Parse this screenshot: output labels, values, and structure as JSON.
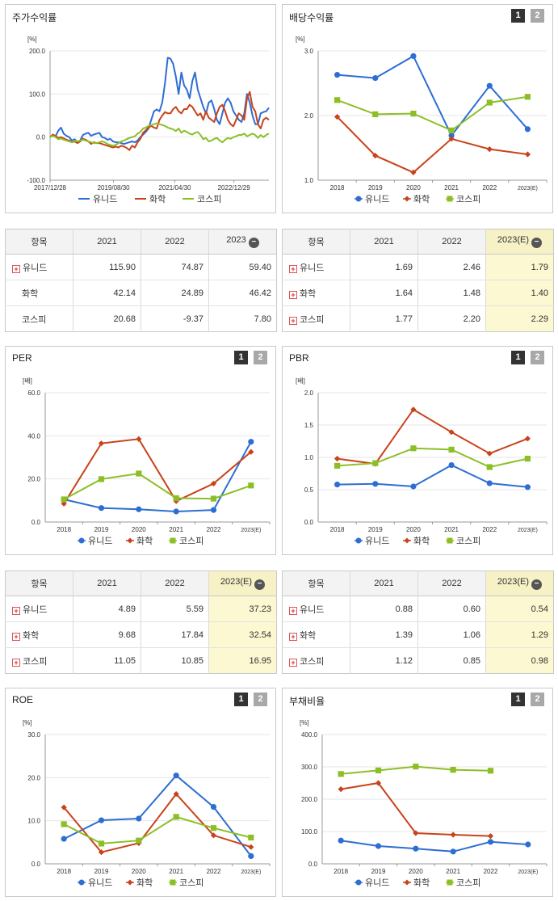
{
  "colors": {
    "series": [
      "#2d6ed3",
      "#c8431b",
      "#8cbf26"
    ]
  },
  "legend": [
    "유니드",
    "화학",
    "코스피"
  ],
  "charts": [
    {
      "id": "stock",
      "title": "주가수익률",
      "unit": "[%]",
      "has_buttons": false,
      "chart_data": {
        "type": "line",
        "title": "주가수익률",
        "ylabel": "[%]",
        "ylim": [
          -100,
          200
        ],
        "yticks": [
          "200.0",
          "100.0",
          "0.0",
          "-100.0"
        ],
        "xticks": [
          "2017/12/28",
          "2019/08/30",
          "2021/04/30",
          "2022/12/29"
        ],
        "series": [
          {
            "name": "유니드",
            "values": [
              0,
              5,
              2,
              15,
              22,
              8,
              3,
              0,
              -8,
              -5,
              -12,
              -8,
              5,
              8,
              10,
              3,
              6,
              8,
              10,
              0,
              -2,
              -6,
              -4,
              -10,
              -12,
              -12,
              -14,
              -16,
              -14,
              -12,
              -10,
              -12,
              -8,
              0,
              6,
              12,
              20,
              40,
              60,
              64,
              60,
              80,
              125,
              184,
              182,
              170,
              140,
              100,
              150,
              120,
              110,
              90,
              130,
              150,
              110,
              90,
              70,
              55,
              80,
              85,
              65,
              40,
              30,
              55,
              80,
              90,
              80,
              60,
              50,
              40,
              35,
              55,
              100,
              80,
              50,
              30,
              30,
              55,
              58,
              60,
              68
            ]
          },
          {
            "name": "화학",
            "values": [
              0,
              6,
              3,
              -2,
              0,
              -3,
              -6,
              -8,
              -12,
              -10,
              -14,
              -10,
              -4,
              -6,
              -10,
              -16,
              -12,
              -14,
              -14,
              -16,
              -18,
              -20,
              -22,
              -24,
              -22,
              -24,
              -20,
              -22,
              -25,
              -30,
              -20,
              -24,
              -12,
              -4,
              10,
              16,
              22,
              26,
              22,
              20,
              40,
              50,
              58,
              55,
              55,
              65,
              70,
              60,
              55,
              65,
              65,
              75,
              70,
              60,
              50,
              55,
              40,
              60,
              45,
              40,
              35,
              55,
              70,
              75,
              60,
              40,
              30,
              25,
              40,
              55,
              50,
              40,
              90,
              105,
              70,
              60,
              30,
              20,
              40,
              45,
              40
            ]
          },
          {
            "name": "코스피",
            "values": [
              0,
              3,
              0,
              -5,
              -3,
              -6,
              -8,
              -10,
              -12,
              -8,
              -10,
              -8,
              -6,
              -8,
              -10,
              -12,
              -14,
              -14,
              -12,
              -10,
              -12,
              -16,
              -18,
              -20,
              -18,
              -14,
              -10,
              -8,
              -5,
              -2,
              0,
              2,
              8,
              12,
              20,
              22,
              26,
              28,
              30,
              32,
              30,
              28,
              26,
              22,
              20,
              18,
              14,
              20,
              10,
              15,
              12,
              8,
              6,
              10,
              12,
              5,
              -5,
              -2,
              -10,
              -8,
              -4,
              -2,
              -8,
              -12,
              -6,
              -2,
              -4,
              0,
              2,
              5,
              5,
              8,
              2,
              5,
              8,
              5,
              -2,
              5,
              0,
              5,
              8
            ]
          }
        ]
      }
    },
    {
      "id": "dividend",
      "title": "배당수익률",
      "unit": "[%]",
      "has_buttons": true,
      "chart_data": {
        "type": "line",
        "title": "배당수익률",
        "ylabel": "[%]",
        "ylim": [
          1.0,
          3.0
        ],
        "yticks": [
          "3.0",
          "2.0",
          "1.0"
        ],
        "categories": [
          "2018",
          "2019",
          "2020",
          "2021",
          "2022",
          "2023(E)"
        ],
        "series": [
          {
            "name": "유니드",
            "values": [
              2.63,
              2.58,
              2.92,
              1.69,
              2.46,
              1.79
            ]
          },
          {
            "name": "화학",
            "values": [
              1.98,
              1.38,
              1.12,
              1.64,
              1.48,
              1.4
            ]
          },
          {
            "name": "코스피",
            "values": [
              2.24,
              2.02,
              2.03,
              1.77,
              2.2,
              2.29
            ]
          }
        ]
      }
    },
    {
      "id": "per",
      "title": "PER",
      "unit": "[배]",
      "has_buttons": true,
      "chart_data": {
        "type": "line",
        "title": "PER",
        "ylabel": "[배]",
        "ylim": [
          0,
          60
        ],
        "yticks": [
          "60.0",
          "40.0",
          "20.0",
          "0.0"
        ],
        "categories": [
          "2018",
          "2019",
          "2020",
          "2021",
          "2022",
          "2023(E)"
        ],
        "series": [
          {
            "name": "유니드",
            "values": [
              10.5,
              6.5,
              5.9,
              4.89,
              5.59,
              37.23
            ]
          },
          {
            "name": "화학",
            "values": [
              8.5,
              36.5,
              38.5,
              9.68,
              17.84,
              32.54
            ]
          },
          {
            "name": "코스피",
            "values": [
              10.5,
              19.9,
              22.5,
              11.05,
              10.85,
              16.95
            ]
          }
        ]
      }
    },
    {
      "id": "pbr",
      "title": "PBR",
      "unit": "[배]",
      "has_buttons": true,
      "chart_data": {
        "type": "line",
        "title": "PBR",
        "ylabel": "[배]",
        "ylim": [
          0,
          2.0
        ],
        "yticks": [
          "2.0",
          "1.5",
          "1.0",
          "0.5",
          "0.0"
        ],
        "categories": [
          "2018",
          "2019",
          "2020",
          "2021",
          "2022",
          "2023(E)"
        ],
        "series": [
          {
            "name": "유니드",
            "values": [
              0.58,
              0.59,
              0.55,
              0.88,
              0.6,
              0.54
            ]
          },
          {
            "name": "화학",
            "values": [
              0.98,
              0.9,
              1.74,
              1.39,
              1.06,
              1.29
            ]
          },
          {
            "name": "코스피",
            "values": [
              0.87,
              0.91,
              1.14,
              1.12,
              0.85,
              0.98
            ]
          }
        ]
      }
    },
    {
      "id": "roe",
      "title": "ROE",
      "unit": "[%]",
      "has_buttons": true,
      "chart_data": {
        "type": "line",
        "title": "ROE",
        "ylabel": "[%]",
        "ylim": [
          0,
          30
        ],
        "yticks": [
          "30.0",
          "20.0",
          "10.0",
          "0.0"
        ],
        "categories": [
          "2018",
          "2019",
          "2020",
          "2021",
          "2022",
          "2023(E)"
        ],
        "series": [
          {
            "name": "유니드",
            "values": [
              5.8,
              10.1,
              10.5,
              20.5,
              13.2,
              1.8
            ]
          },
          {
            "name": "화학",
            "values": [
              13.1,
              2.7,
              4.8,
              16.2,
              6.6,
              3.9
            ]
          },
          {
            "name": "코스피",
            "values": [
              9.2,
              4.7,
              5.4,
              10.9,
              8.3,
              6.1
            ]
          }
        ]
      }
    },
    {
      "id": "debt",
      "title": "부채비율",
      "unit": "[%]",
      "has_buttons": true,
      "chart_data": {
        "type": "line",
        "title": "부채비율",
        "ylabel": "[%]",
        "ylim": [
          0,
          400
        ],
        "yticks": [
          "400.0",
          "300.0",
          "200.0",
          "100.0",
          "0.0"
        ],
        "categories": [
          "2018",
          "2019",
          "2020",
          "2021",
          "2022",
          "2023(E)"
        ],
        "series": [
          {
            "name": "유니드",
            "values": [
              72,
              55,
              47,
              38,
              68,
              60
            ]
          },
          {
            "name": "화학",
            "values": [
              231,
              250,
              95,
              90,
              86,
              null
            ]
          },
          {
            "name": "코스피",
            "values": [
              278,
              289,
              301,
              291,
              288,
              null
            ]
          }
        ]
      }
    }
  ],
  "buttons": {
    "one": "1",
    "two": "2"
  },
  "tables": [
    {
      "id": "stock-table",
      "headers": [
        "항목",
        "2021",
        "2022",
        "2023"
      ],
      "expandable": [
        true,
        false,
        false
      ],
      "highlight_last": false,
      "rows": [
        {
          "name": "유니드",
          "values": [
            "115.90",
            "74.87",
            "59.40"
          ]
        },
        {
          "name": "화학",
          "values": [
            "42.14",
            "24.89",
            "46.42"
          ]
        },
        {
          "name": "코스피",
          "values": [
            "20.68",
            "-9.37",
            "7.80"
          ]
        }
      ]
    },
    {
      "id": "dividend-table",
      "headers": [
        "항목",
        "2021",
        "2022",
        "2023(E)"
      ],
      "expandable": [
        true,
        true,
        true
      ],
      "highlight_last": true,
      "rows": [
        {
          "name": "유니드",
          "values": [
            "1.69",
            "2.46",
            "1.79"
          ]
        },
        {
          "name": "화학",
          "values": [
            "1.64",
            "1.48",
            "1.40"
          ]
        },
        {
          "name": "코스피",
          "values": [
            "1.77",
            "2.20",
            "2.29"
          ]
        }
      ]
    },
    {
      "id": "per-table",
      "headers": [
        "항목",
        "2021",
        "2022",
        "2023(E)"
      ],
      "expandable": [
        true,
        true,
        true
      ],
      "highlight_last": true,
      "rows": [
        {
          "name": "유니드",
          "values": [
            "4.89",
            "5.59",
            "37.23"
          ]
        },
        {
          "name": "화학",
          "values": [
            "9.68",
            "17.84",
            "32.54"
          ]
        },
        {
          "name": "코스피",
          "values": [
            "11.05",
            "10.85",
            "16.95"
          ]
        }
      ]
    },
    {
      "id": "pbr-table",
      "headers": [
        "항목",
        "2021",
        "2022",
        "2023(E)"
      ],
      "expandable": [
        true,
        true,
        true
      ],
      "highlight_last": true,
      "rows": [
        {
          "name": "유니드",
          "values": [
            "0.88",
            "0.60",
            "0.54"
          ]
        },
        {
          "name": "화학",
          "values": [
            "1.39",
            "1.06",
            "1.29"
          ]
        },
        {
          "name": "코스피",
          "values": [
            "1.12",
            "0.85",
            "0.98"
          ]
        }
      ]
    }
  ]
}
